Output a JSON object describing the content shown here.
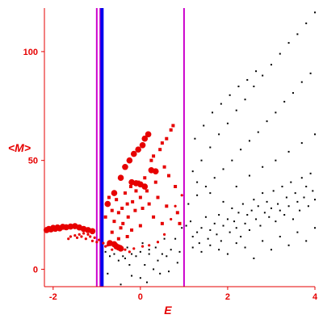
{
  "chart_data": {
    "type": "scatter",
    "xlabel": "E",
    "ylabel": "<M>",
    "xlim": [
      -2.2,
      4.0
    ],
    "ylim": [
      -8,
      120
    ],
    "xticks": [
      "-2",
      "0",
      "2",
      "4"
    ],
    "yticks": [
      "0",
      "50",
      "100"
    ],
    "grid": false,
    "legend": "none",
    "axis_color": "#e60000",
    "vertical_lines": [
      {
        "x": -1.0,
        "color": "#cc00cc"
      },
      {
        "x": -0.92,
        "color": "#cc00cc"
      },
      {
        "x": -0.88,
        "color": "#0000ee"
      },
      {
        "x": 1.0,
        "color": "#cc00cc"
      }
    ],
    "series": [
      {
        "color": "#e60000",
        "marker": "large-circle",
        "points": [
          [
            -2.15,
            18
          ],
          [
            -2.1,
            18.5
          ],
          [
            -2.05,
            18.3
          ],
          [
            -2.0,
            19
          ],
          [
            -1.95,
            18.6
          ],
          [
            -1.9,
            19.2
          ],
          [
            -1.85,
            18.8
          ],
          [
            -1.78,
            19.5
          ],
          [
            -1.7,
            19.3
          ],
          [
            -1.6,
            19.6
          ],
          [
            -1.5,
            19.8
          ],
          [
            -1.4,
            19.2
          ],
          [
            -1.3,
            18.5
          ],
          [
            -1.2,
            18
          ],
          [
            -1.1,
            17.5
          ],
          [
            -0.7,
            12
          ],
          [
            -0.6,
            11.5
          ],
          [
            -0.55,
            10.5
          ],
          [
            -0.5,
            10
          ],
          [
            -0.45,
            9.5
          ],
          [
            -0.75,
            30
          ],
          [
            -0.6,
            35
          ],
          [
            -0.45,
            42
          ],
          [
            -0.35,
            47
          ],
          [
            -0.25,
            50
          ],
          [
            -0.15,
            53
          ],
          [
            -0.05,
            55
          ],
          [
            0.05,
            57
          ],
          [
            0.1,
            60
          ],
          [
            0.18,
            62
          ],
          [
            -0.2,
            40
          ],
          [
            -0.1,
            39.5
          ],
          [
            0.0,
            39
          ],
          [
            0.1,
            38
          ],
          [
            0.25,
            45.5
          ],
          [
            0.35,
            45
          ]
        ]
      },
      {
        "color": "#e60000",
        "marker": "square",
        "points": [
          [
            -0.8,
            24
          ],
          [
            -0.72,
            33
          ],
          [
            -0.65,
            27
          ],
          [
            -0.6,
            22
          ],
          [
            -0.55,
            32
          ],
          [
            -0.5,
            26
          ],
          [
            -0.45,
            19
          ],
          [
            -0.42,
            28
          ],
          [
            -0.35,
            35
          ],
          [
            -0.3,
            30
          ],
          [
            -0.28,
            24
          ],
          [
            -0.22,
            38
          ],
          [
            -0.18,
            31
          ],
          [
            -0.12,
            27
          ],
          [
            -0.1,
            36
          ],
          [
            -0.05,
            40
          ],
          [
            0.0,
            33
          ],
          [
            0.05,
            28
          ],
          [
            0.1,
            42
          ],
          [
            0.15,
            36
          ],
          [
            0.2,
            30
          ],
          [
            0.25,
            50
          ],
          [
            0.3,
            52
          ],
          [
            0.35,
            40
          ],
          [
            0.4,
            33
          ],
          [
            0.45,
            55
          ],
          [
            0.5,
            58
          ],
          [
            0.55,
            47
          ],
          [
            0.6,
            60
          ],
          [
            0.65,
            43
          ],
          [
            0.7,
            64
          ],
          [
            0.75,
            66
          ],
          [
            0.8,
            38
          ],
          [
            0.85,
            26
          ],
          [
            0.9,
            21
          ],
          [
            -0.65,
            17
          ],
          [
            -0.5,
            14
          ],
          [
            -0.4,
            21
          ],
          [
            -0.3,
            15
          ],
          [
            -0.2,
            18
          ],
          [
            0.0,
            20
          ],
          [
            0.3,
            24
          ],
          [
            0.5,
            21
          ],
          [
            0.6,
            29
          ]
        ]
      },
      {
        "color": "#e60000",
        "marker": "small-dot",
        "points": [
          [
            -1.65,
            14
          ],
          [
            -1.6,
            15
          ],
          [
            -1.5,
            15.5
          ],
          [
            -1.45,
            14.5
          ],
          [
            -1.4,
            16
          ],
          [
            -1.35,
            15
          ],
          [
            -1.3,
            16.5
          ],
          [
            -1.25,
            14
          ],
          [
            -1.2,
            16
          ],
          [
            -1.15,
            15
          ],
          [
            -1.1,
            13
          ],
          [
            -1.05,
            14.5
          ],
          [
            -1.0,
            12.5
          ],
          [
            -0.95,
            13.5
          ],
          [
            -0.85,
            12
          ],
          [
            -0.8,
            10.5
          ],
          [
            -0.75,
            11
          ],
          [
            -0.65,
            9
          ],
          [
            -0.55,
            11.5
          ],
          [
            -0.45,
            10.5
          ],
          [
            -0.35,
            9
          ],
          [
            -0.25,
            8
          ],
          [
            -0.15,
            9.5
          ],
          [
            0.05,
            10.5
          ],
          [
            0.2,
            11
          ],
          [
            0.4,
            12.5
          ],
          [
            0.55,
            16
          ],
          [
            0.7,
            23
          ],
          [
            0.8,
            29
          ],
          [
            0.95,
            34
          ]
        ]
      },
      {
        "color": "#000000",
        "marker": "tiny-dot",
        "points": [
          [
            -0.75,
            -2
          ],
          [
            -0.5,
            4
          ],
          [
            -0.45,
            -7
          ],
          [
            -0.35,
            5
          ],
          [
            -0.3,
            10
          ],
          [
            -0.25,
            2
          ],
          [
            -0.2,
            -3
          ],
          [
            -0.1,
            6
          ],
          [
            0.0,
            -4
          ],
          [
            0.05,
            12
          ],
          [
            0.1,
            2
          ],
          [
            0.15,
            -6
          ],
          [
            0.2,
            7
          ],
          [
            0.3,
            0
          ],
          [
            0.35,
            10
          ],
          [
            0.4,
            4
          ],
          [
            0.45,
            -2
          ],
          [
            0.5,
            7
          ],
          [
            0.55,
            14
          ],
          [
            0.6,
            6
          ],
          [
            0.65,
            -1
          ],
          [
            0.7,
            9
          ],
          [
            0.8,
            14
          ],
          [
            0.85,
            3
          ],
          [
            0.9,
            8
          ],
          [
            0.95,
            19
          ],
          [
            -0.8,
            8
          ],
          [
            -0.7,
            6
          ],
          [
            -0.6,
            7
          ],
          [
            -0.4,
            6
          ],
          [
            -0.2,
            7
          ],
          [
            0.0,
            8
          ],
          [
            0.2,
            9
          ],
          [
            1.05,
            20
          ],
          [
            1.15,
            22
          ],
          [
            1.2,
            15
          ],
          [
            1.3,
            17
          ],
          [
            1.35,
            12
          ],
          [
            1.4,
            19
          ],
          [
            1.5,
            24
          ],
          [
            1.55,
            14
          ],
          [
            1.6,
            18
          ],
          [
            1.7,
            21
          ],
          [
            1.75,
            16
          ],
          [
            1.8,
            25
          ],
          [
            1.85,
            13
          ],
          [
            1.9,
            20
          ],
          [
            2.0,
            23
          ],
          [
            2.05,
            17
          ],
          [
            2.1,
            28
          ],
          [
            2.15,
            22
          ],
          [
            2.2,
            19
          ],
          [
            2.25,
            26
          ],
          [
            2.3,
            15
          ],
          [
            2.35,
            30
          ],
          [
            2.4,
            21
          ],
          [
            2.45,
            25
          ],
          [
            2.5,
            18
          ],
          [
            2.55,
            27
          ],
          [
            2.6,
            32
          ],
          [
            2.65,
            23
          ],
          [
            2.7,
            29
          ],
          [
            2.75,
            20
          ],
          [
            2.8,
            35
          ],
          [
            2.85,
            26
          ],
          [
            2.9,
            31
          ],
          [
            2.95,
            24
          ],
          [
            3.0,
            28
          ],
          [
            3.05,
            36
          ],
          [
            3.1,
            22
          ],
          [
            3.15,
            30
          ],
          [
            3.2,
            27
          ],
          [
            3.25,
            38
          ],
          [
            3.3,
            25
          ],
          [
            3.35,
            33
          ],
          [
            3.4,
            29
          ],
          [
            3.45,
            40
          ],
          [
            3.5,
            23
          ],
          [
            3.55,
            35
          ],
          [
            3.6,
            31
          ],
          [
            3.65,
            27
          ],
          [
            3.7,
            42
          ],
          [
            3.75,
            33
          ],
          [
            3.8,
            38
          ],
          [
            3.85,
            29
          ],
          [
            3.9,
            44
          ],
          [
            3.95,
            36
          ],
          [
            4.0,
            32
          ],
          [
            1.1,
            30
          ],
          [
            1.3,
            34
          ],
          [
            1.5,
            38
          ],
          [
            1.7,
            42
          ],
          [
            1.9,
            46
          ],
          [
            2.1,
            50
          ],
          [
            2.3,
            55
          ],
          [
            2.5,
            59
          ],
          [
            2.7,
            63
          ],
          [
            2.9,
            68
          ],
          [
            3.1,
            72
          ],
          [
            3.3,
            77
          ],
          [
            3.5,
            81
          ],
          [
            3.7,
            86
          ],
          [
            3.9,
            90
          ],
          [
            1.2,
            45
          ],
          [
            1.4,
            50
          ],
          [
            1.6,
            56
          ],
          [
            1.8,
            62
          ],
          [
            2.0,
            67
          ],
          [
            2.2,
            73
          ],
          [
            2.4,
            78
          ],
          [
            2.6,
            84
          ],
          [
            2.8,
            89
          ],
          [
            3.0,
            94
          ],
          [
            3.2,
            99
          ],
          [
            3.4,
            104
          ],
          [
            3.6,
            108
          ],
          [
            3.8,
            113
          ],
          [
            4.0,
            118
          ],
          [
            1.25,
            60
          ],
          [
            1.45,
            66
          ],
          [
            1.65,
            72
          ],
          [
            1.85,
            76
          ],
          [
            2.05,
            80
          ],
          [
            2.25,
            84
          ],
          [
            2.45,
            87
          ],
          [
            2.65,
            91
          ],
          [
            1.2,
            10
          ],
          [
            1.4,
            8
          ],
          [
            1.6,
            11
          ],
          [
            1.8,
            9
          ],
          [
            2.0,
            7
          ],
          [
            2.2,
            12
          ],
          [
            2.4,
            10
          ],
          [
            2.6,
            5
          ],
          [
            2.8,
            13
          ],
          [
            3.0,
            9
          ],
          [
            3.2,
            15
          ],
          [
            3.4,
            11
          ],
          [
            3.6,
            17
          ],
          [
            3.8,
            13
          ],
          [
            4.0,
            19
          ],
          [
            1.3,
            40
          ],
          [
            1.6,
            35
          ],
          [
            1.9,
            31
          ],
          [
            2.2,
            38
          ],
          [
            2.5,
            43
          ],
          [
            2.8,
            47
          ],
          [
            3.1,
            50
          ],
          [
            3.4,
            54
          ],
          [
            3.7,
            58
          ],
          [
            4.0,
            62
          ]
        ]
      }
    ]
  }
}
